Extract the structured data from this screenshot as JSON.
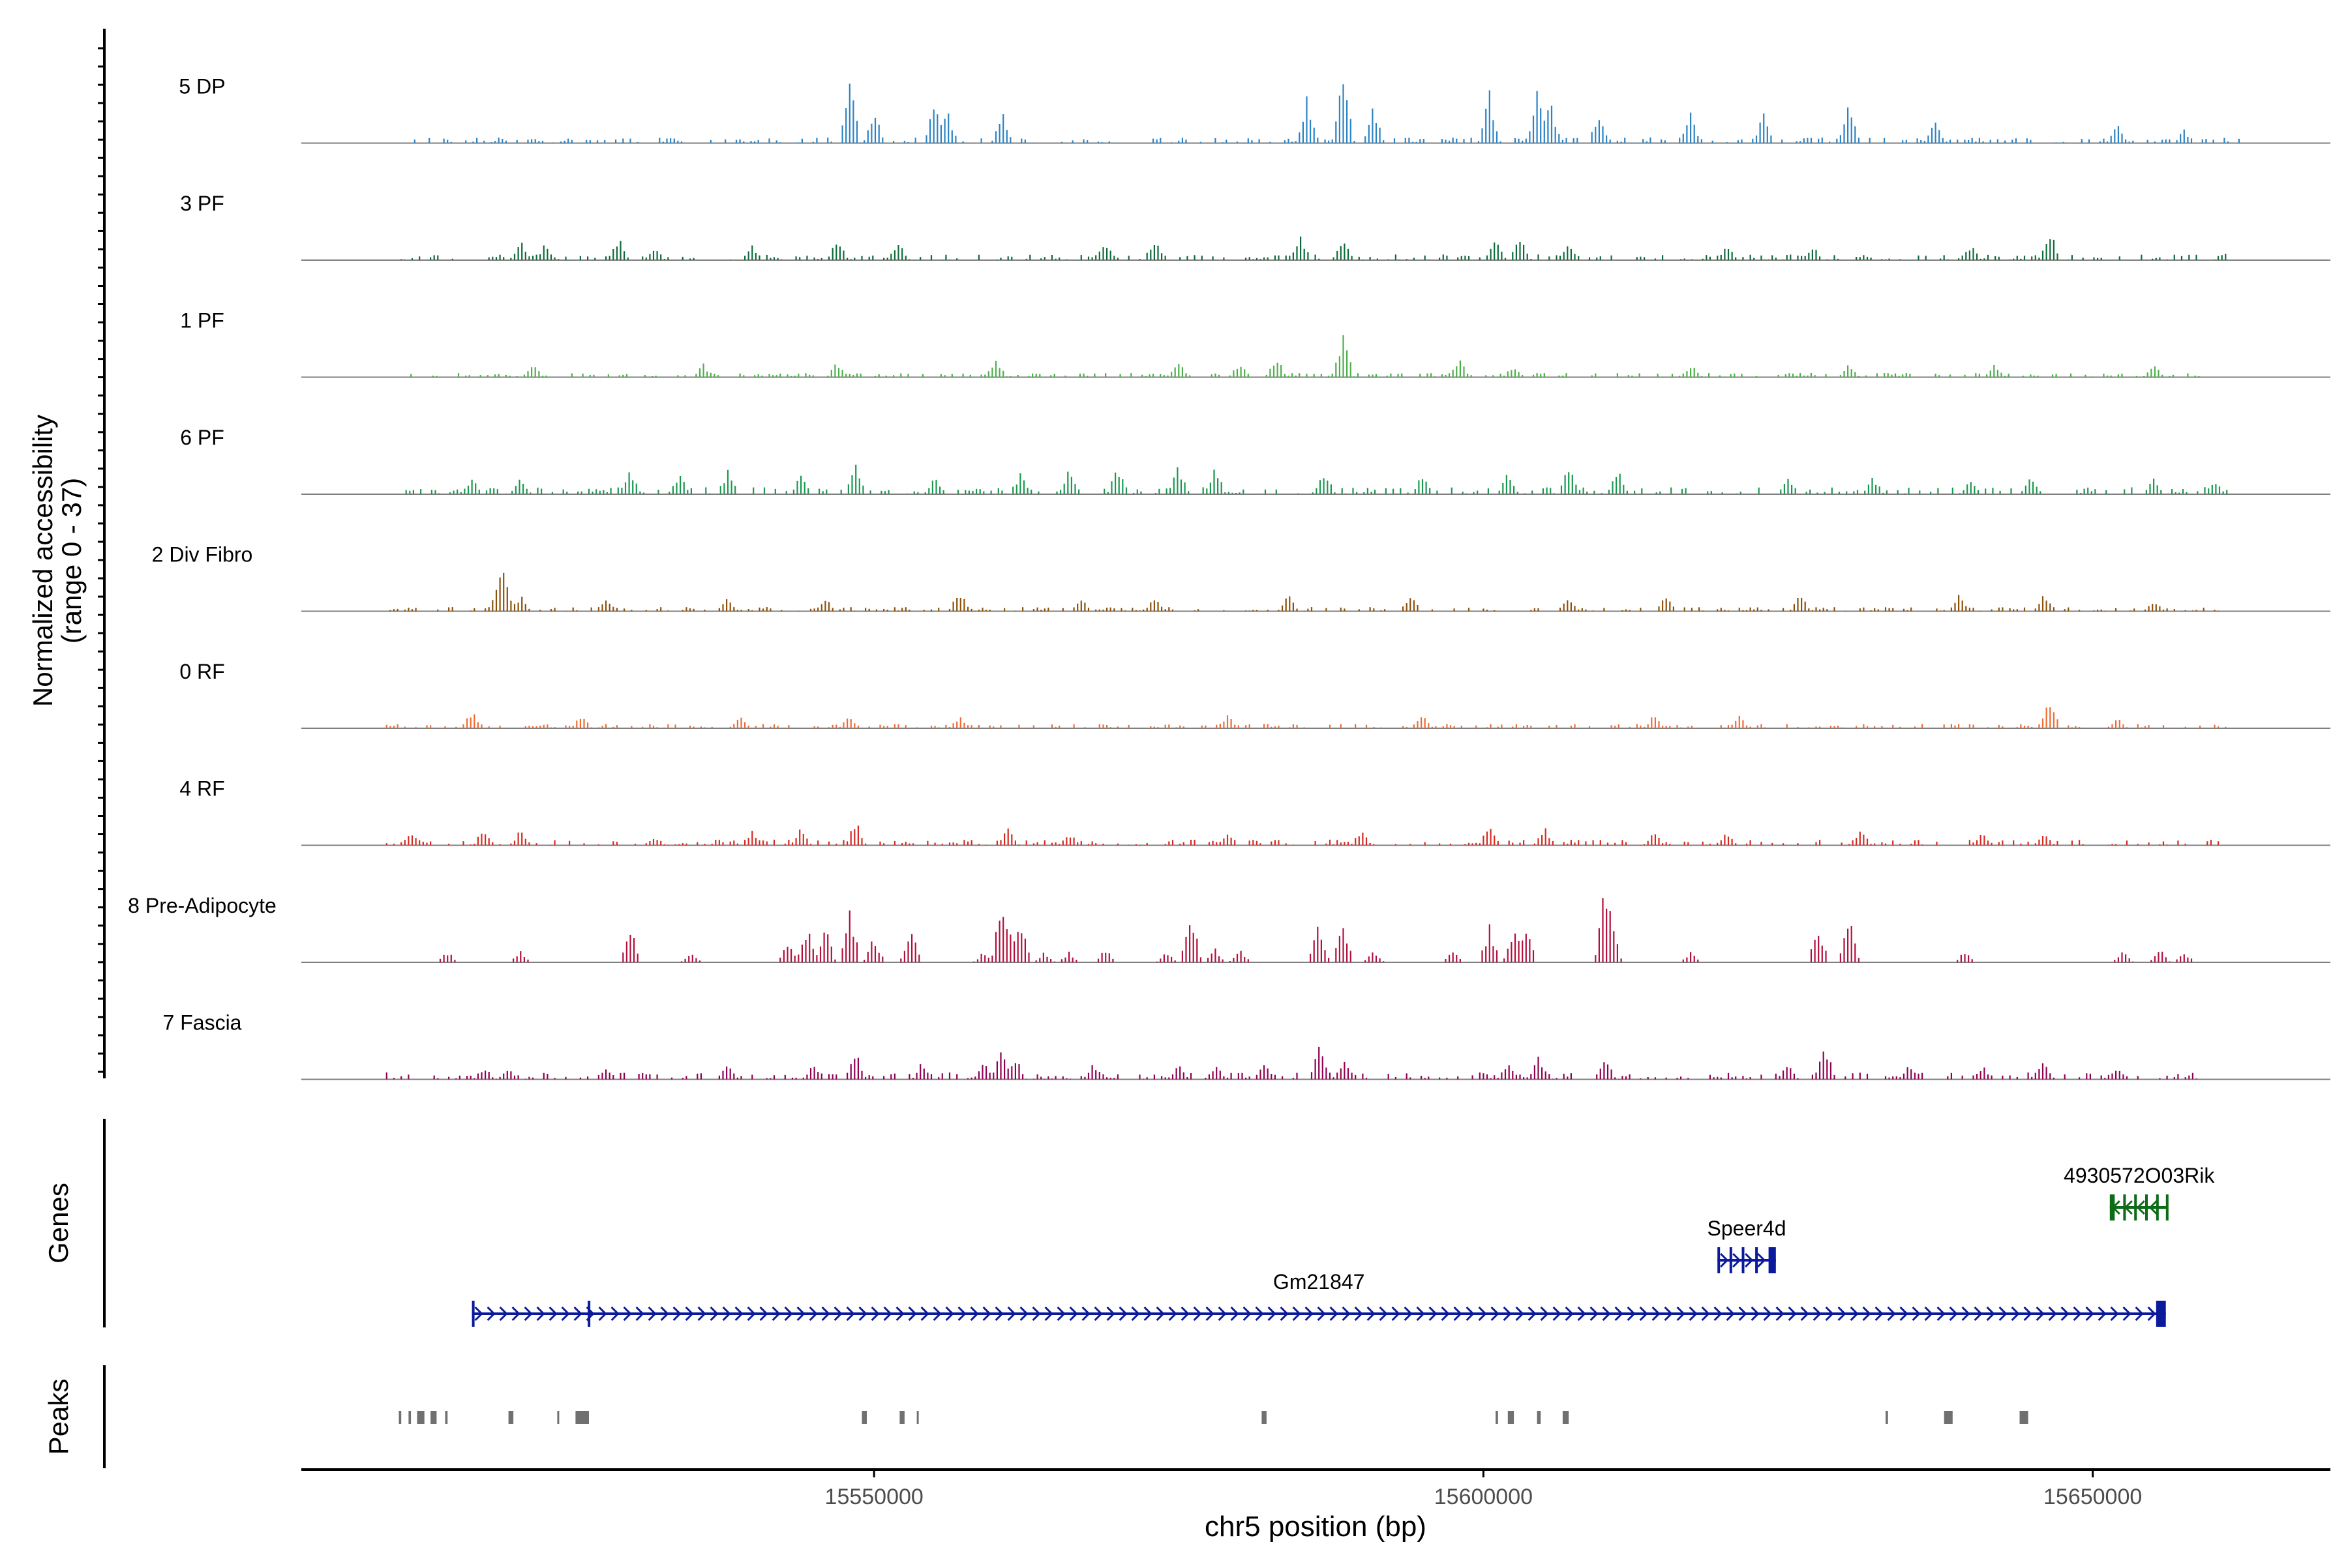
{
  "chart_data": {
    "type": "area",
    "title": "",
    "region": {
      "chrom": "chr5",
      "start": 15503000,
      "end": 15669500
    },
    "xlabel": "chr5 position (bp)",
    "x_ticks": [
      15550000,
      15600000,
      15650000
    ],
    "x_tick_labels": [
      "15550000",
      "15600000",
      "15650000"
    ],
    "ylabel_line1": "Normalized accessibility",
    "ylabel_line2": "(range 0 - 37)",
    "ylim": [
      0,
      37
    ],
    "track_panel_labels": {
      "genes": "Genes",
      "peaks": "Peaks"
    },
    "series": [
      {
        "name": "5 DP",
        "color": "#2b83c4",
        "data_start": 15512000,
        "data_end": 15662000,
        "baseline": 2,
        "sparsity": 0.55,
        "peaks": [
          [
            15548000,
            26
          ],
          [
            15550000,
            12
          ],
          [
            15555000,
            16
          ],
          [
            15556000,
            12
          ],
          [
            15560500,
            12
          ],
          [
            15585500,
            18
          ],
          [
            15588500,
            28
          ],
          [
            15591000,
            14
          ],
          [
            15600500,
            20
          ],
          [
            15604500,
            26
          ],
          [
            15605500,
            16
          ],
          [
            15609500,
            12
          ],
          [
            15617000,
            11
          ],
          [
            15623000,
            13
          ],
          [
            15630000,
            17
          ],
          [
            15637000,
            10
          ],
          [
            15652000,
            8
          ],
          [
            15657500,
            5
          ]
        ]
      },
      {
        "name": "3 PF",
        "color": "#0d6b3a",
        "data_start": 15510000,
        "data_end": 15661000,
        "baseline": 2,
        "sparsity": 0.5,
        "peaks": [
          [
            15521000,
            7
          ],
          [
            15523000,
            6
          ],
          [
            15529000,
            9
          ],
          [
            15532000,
            5
          ],
          [
            15540000,
            6
          ],
          [
            15547000,
            8
          ],
          [
            15552000,
            7
          ],
          [
            15569000,
            7
          ],
          [
            15573000,
            8
          ],
          [
            15585000,
            9
          ],
          [
            15588500,
            10
          ],
          [
            15601000,
            8
          ],
          [
            15603000,
            9
          ],
          [
            15607000,
            7
          ],
          [
            15620000,
            7
          ],
          [
            15627000,
            6
          ],
          [
            15640000,
            6
          ],
          [
            15646500,
            11
          ],
          [
            15661000,
            3
          ]
        ]
      },
      {
        "name": "1 PF",
        "color": "#4daf4a",
        "data_start": 15512000,
        "data_end": 15661000,
        "baseline": 1.5,
        "sparsity": 0.55,
        "peaks": [
          [
            15522000,
            5
          ],
          [
            15536000,
            5
          ],
          [
            15547000,
            6
          ],
          [
            15560000,
            7
          ],
          [
            15575000,
            7
          ],
          [
            15580000,
            6
          ],
          [
            15583000,
            8
          ],
          [
            15588500,
            16
          ],
          [
            15598000,
            7
          ],
          [
            15602500,
            5
          ],
          [
            15617000,
            5
          ],
          [
            15630000,
            5
          ],
          [
            15642000,
            5
          ],
          [
            15655000,
            5
          ]
        ]
      },
      {
        "name": "6 PF",
        "color": "#1a9850",
        "data_start": 15511000,
        "data_end": 15661000,
        "baseline": 2.5,
        "sparsity": 0.5,
        "peaks": [
          [
            15517000,
            6
          ],
          [
            15521000,
            6
          ],
          [
            15530000,
            9
          ],
          [
            15534000,
            8
          ],
          [
            15538000,
            9
          ],
          [
            15544000,
            7
          ],
          [
            15548500,
            12
          ],
          [
            15555000,
            8
          ],
          [
            15562000,
            8
          ],
          [
            15566000,
            9
          ],
          [
            15570000,
            11
          ],
          [
            15575000,
            11
          ],
          [
            15578000,
            10
          ],
          [
            15587000,
            10
          ],
          [
            15595000,
            8
          ],
          [
            15602000,
            8
          ],
          [
            15607000,
            11
          ],
          [
            15611000,
            11
          ],
          [
            15625000,
            7
          ],
          [
            15632000,
            7
          ],
          [
            15640000,
            6
          ],
          [
            15645000,
            7
          ],
          [
            15655000,
            6
          ],
          [
            15660000,
            5
          ]
        ]
      },
      {
        "name": "2 Div Fibro",
        "color": "#8c510a",
        "data_start": 15510000,
        "data_end": 15661000,
        "baseline": 1.5,
        "sparsity": 0.5,
        "peaks": [
          [
            15519500,
            21
          ],
          [
            15519000,
            6
          ],
          [
            15521000,
            6
          ],
          [
            15528000,
            5
          ],
          [
            15538000,
            5
          ],
          [
            15546000,
            5
          ],
          [
            15557000,
            8
          ],
          [
            15567000,
            5
          ],
          [
            15573000,
            6
          ],
          [
            15584000,
            6
          ],
          [
            15594000,
            7
          ],
          [
            15607000,
            6
          ],
          [
            15615000,
            6
          ],
          [
            15626000,
            7
          ],
          [
            15639000,
            6
          ],
          [
            15646000,
            7
          ],
          [
            15655000,
            4
          ]
        ]
      },
      {
        "name": "0 RF",
        "color": "#f16a30",
        "data_start": 15510000,
        "data_end": 15661000,
        "baseline": 1.5,
        "sparsity": 0.55,
        "peaks": [
          [
            15517000,
            7
          ],
          [
            15526000,
            5
          ],
          [
            15539000,
            5
          ],
          [
            15548000,
            5
          ],
          [
            15557000,
            5
          ],
          [
            15579000,
            5
          ],
          [
            15595000,
            6
          ],
          [
            15614000,
            5
          ],
          [
            15621000,
            5
          ],
          [
            15646500,
            12
          ],
          [
            15652000,
            4
          ]
        ]
      },
      {
        "name": "4 RF",
        "color": "#d42a22",
        "data_start": 15510000,
        "data_end": 15661000,
        "baseline": 2,
        "sparsity": 0.5,
        "peaks": [
          [
            15512000,
            5
          ],
          [
            15518000,
            7
          ],
          [
            15521000,
            6
          ],
          [
            15532000,
            4
          ],
          [
            15540000,
            6
          ],
          [
            15544000,
            7
          ],
          [
            15548500,
            9
          ],
          [
            15561000,
            7
          ],
          [
            15566000,
            5
          ],
          [
            15579000,
            6
          ],
          [
            15590000,
            6
          ],
          [
            15600500,
            10
          ],
          [
            15605000,
            7
          ],
          [
            15614000,
            5
          ],
          [
            15620000,
            5
          ],
          [
            15631000,
            6
          ],
          [
            15641000,
            5
          ],
          [
            15646000,
            5
          ]
        ]
      },
      {
        "name": "8 Pre-Adipocyte",
        "color": "#b30f3c",
        "data_start": 15512000,
        "data_end": 15660000,
        "baseline": 0,
        "sparsity": 1,
        "peaks": [
          [
            15515000,
            4
          ],
          [
            15521000,
            4
          ],
          [
            15530000,
            14
          ],
          [
            15535000,
            4
          ],
          [
            15543000,
            8
          ],
          [
            15544500,
            14
          ],
          [
            15546000,
            14
          ],
          [
            15548000,
            22
          ],
          [
            15550000,
            10
          ],
          [
            15553000,
            14
          ],
          [
            15559000,
            4
          ],
          [
            15560500,
            27
          ],
          [
            15561000,
            19
          ],
          [
            15562000,
            16
          ],
          [
            15564000,
            4
          ],
          [
            15566000,
            4
          ],
          [
            15569000,
            5
          ],
          [
            15574000,
            4
          ],
          [
            15576000,
            19
          ],
          [
            15578000,
            5
          ],
          [
            15580000,
            5
          ],
          [
            15586500,
            15
          ],
          [
            15588500,
            16
          ],
          [
            15591000,
            4
          ],
          [
            15597500,
            4
          ],
          [
            15600500,
            14
          ],
          [
            15602500,
            14
          ],
          [
            15603500,
            14
          ],
          [
            15610000,
            35
          ],
          [
            15610500,
            20
          ],
          [
            15617000,
            4
          ],
          [
            15627500,
            14
          ],
          [
            15630000,
            18
          ],
          [
            15639500,
            4
          ],
          [
            15652500,
            4
          ],
          [
            15655500,
            5
          ],
          [
            15657500,
            4
          ]
        ]
      },
      {
        "name": "7 Fascia",
        "color": "#8e0152",
        "data_start": 15510000,
        "data_end": 15658500,
        "baseline": 2.5,
        "sparsity": 0.5,
        "peaks": [
          [
            15518000,
            5
          ],
          [
            15520000,
            5
          ],
          [
            15528000,
            5
          ],
          [
            15538000,
            6
          ],
          [
            15545000,
            6
          ],
          [
            15548500,
            11
          ],
          [
            15554000,
            7
          ],
          [
            15559000,
            7
          ],
          [
            15560500,
            12
          ],
          [
            15561500,
            10
          ],
          [
            15568000,
            6
          ],
          [
            15575000,
            6
          ],
          [
            15578000,
            6
          ],
          [
            15582000,
            6
          ],
          [
            15586500,
            13
          ],
          [
            15588500,
            8
          ],
          [
            15602000,
            7
          ],
          [
            15604500,
            9
          ],
          [
            15610000,
            8
          ],
          [
            15625000,
            6
          ],
          [
            15628000,
            14
          ],
          [
            15635000,
            6
          ],
          [
            15641000,
            5
          ],
          [
            15646000,
            7
          ],
          [
            15652000,
            5
          ]
        ]
      }
    ],
    "genes": [
      {
        "name": "Gm21847",
        "start": 15517000,
        "end": 15656000,
        "strand": "+",
        "color": "#0a1a9a",
        "exons": [
          [
            15517000,
            15517200
          ],
          [
            15526500,
            15526650
          ],
          [
            15655200,
            15656000
          ]
        ]
      },
      {
        "name": "Speer4d",
        "start": 15619200,
        "end": 15624000,
        "strand": "+",
        "color": "#0a1a9a",
        "exons": [
          [
            15619200,
            15619300
          ],
          [
            15620200,
            15620350
          ],
          [
            15621200,
            15621350
          ],
          [
            15622300,
            15622450
          ],
          [
            15623400,
            15624000
          ]
        ]
      },
      {
        "name": "4930572O03Rik",
        "start": 15651400,
        "end": 15656200,
        "strand": "-",
        "color": "#0e6b16",
        "exons": [
          [
            15651400,
            15651800
          ],
          [
            15652500,
            15652650
          ],
          [
            15653400,
            15653550
          ],
          [
            15654300,
            15654450
          ],
          [
            15655200,
            15655350
          ],
          [
            15656000,
            15656200
          ]
        ]
      }
    ],
    "peaks_track": [
      [
        15511000,
        15511200
      ],
      [
        15511800,
        15512000
      ],
      [
        15512500,
        15513100
      ],
      [
        15513600,
        15514100
      ],
      [
        15514800,
        15515000
      ],
      [
        15520000,
        15520400
      ],
      [
        15524000,
        15524100
      ],
      [
        15525500,
        15526600
      ],
      [
        15549000,
        15549400
      ],
      [
        15552100,
        15552500
      ],
      [
        15553500,
        15553600
      ],
      [
        15581800,
        15582200
      ],
      [
        15601000,
        15601200
      ],
      [
        15602000,
        15602500
      ],
      [
        15604400,
        15604700
      ],
      [
        15606500,
        15607000
      ],
      [
        15633000,
        15633200
      ],
      [
        15637800,
        15638500
      ],
      [
        15644000,
        15644700
      ]
    ]
  }
}
